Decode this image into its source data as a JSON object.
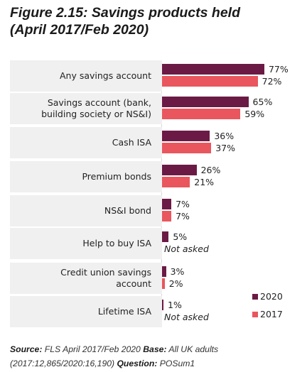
{
  "figure": {
    "title_line1": "Figure 2.15: Savings products held",
    "title_line2": "(April 2017/Feb 2020)"
  },
  "chart_data": {
    "type": "bar",
    "orientation": "horizontal",
    "categories": [
      [
        "Any savings account"
      ],
      [
        "Savings account (bank,",
        "building society or NS&I)"
      ],
      [
        "Cash ISA"
      ],
      [
        "Premium bonds"
      ],
      [
        "NS&I bond"
      ],
      [
        "Help to buy ISA"
      ],
      [
        "Credit union savings",
        "account"
      ],
      [
        "Lifetime ISA"
      ]
    ],
    "series": [
      {
        "name": "2020",
        "color": "#6b1a45",
        "values": [
          77,
          65,
          36,
          26,
          7,
          5,
          3,
          1
        ],
        "labels": [
          "77%",
          "65%",
          "36%",
          "26%",
          "7%",
          "5%",
          "3%",
          "1%"
        ]
      },
      {
        "name": "2017",
        "color": "#e9565d",
        "values": [
          72,
          59,
          37,
          21,
          7,
          null,
          2,
          null
        ],
        "labels": [
          "72%",
          "59%",
          "37%",
          "21%",
          "7%",
          "Not asked",
          "2%",
          "Not asked"
        ]
      }
    ],
    "xlim": [
      0,
      100
    ],
    "legend_position": "bottom-right",
    "grid": false
  },
  "footer": {
    "source_label": "Source:",
    "source_text": "FLS April 2017/Feb 2020",
    "base_label": "Base:",
    "base_text": "All UK adults (2017:12,865/2020:16,190)",
    "question_label": "Question:",
    "question_text": "POSum1"
  }
}
